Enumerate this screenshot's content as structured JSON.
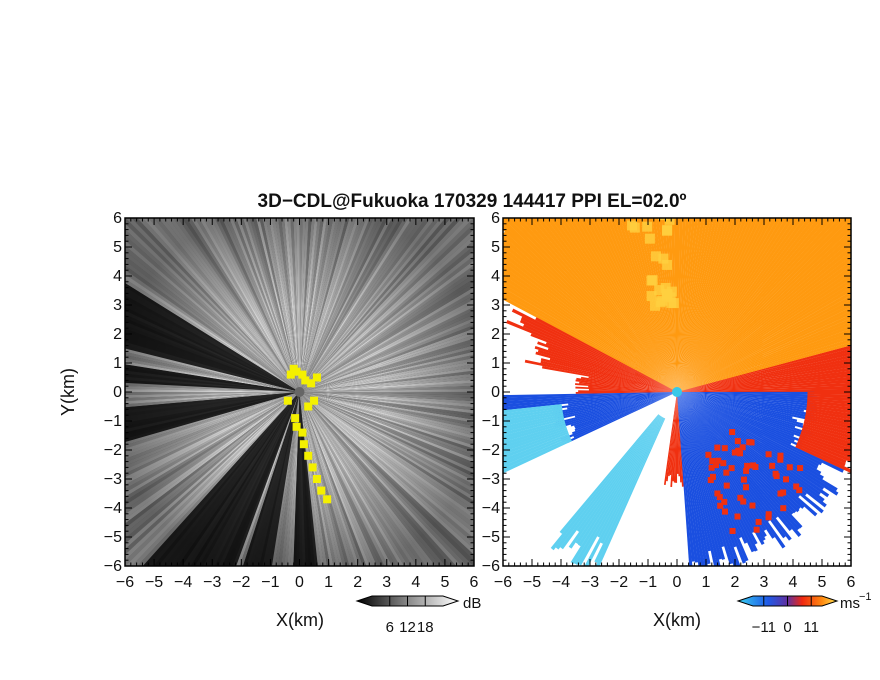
{
  "title": "3D−CDL@Fukuoka 170329 144417 PPI EL=02.0º",
  "chart_data": [
    {
      "type": "heatmap",
      "panel": "left",
      "quantity": "radar backscatter intensity",
      "xlabel": "X(km)",
      "ylabel": "Y(km)",
      "xlim": [
        -6,
        6
      ],
      "ylim": [
        -6,
        6
      ],
      "xticks": [
        "−6",
        "−5",
        "−4",
        "−3",
        "−2",
        "−1",
        "0",
        "1",
        "2",
        "3",
        "4",
        "5",
        "6"
      ],
      "yticks": [
        "−6",
        "−5",
        "−4",
        "−3",
        "−2",
        "−1",
        "0",
        "1",
        "2",
        "3",
        "4",
        "5",
        "6"
      ],
      "colorbar": {
        "unit": "dB",
        "ticks": [
          "6",
          "12",
          "18"
        ],
        "values": [
          6,
          12,
          18
        ],
        "range": [
          0,
          24
        ]
      },
      "colors": {
        "low": "#1e1e1e",
        "high": "#f2f2f2",
        "flag": "#f4f000",
        "radar_site": "#666666"
      }
    },
    {
      "type": "heatmap",
      "panel": "right",
      "quantity": "Doppler radial velocity",
      "xlabel": "X(km)",
      "ylabel": "",
      "xlim": [
        -6,
        6
      ],
      "ylim": [
        -6,
        6
      ],
      "xticks": [
        "−6",
        "−5",
        "−4",
        "−3",
        "−2",
        "−1",
        "0",
        "1",
        "2",
        "3",
        "4",
        "5",
        "6"
      ],
      "yticks": [
        "−6",
        "−5",
        "−4",
        "−3",
        "−2",
        "−1",
        "0",
        "1",
        "2",
        "3",
        "4",
        "5",
        "6"
      ],
      "colorbar": {
        "unit": "ms",
        "unit_exp": "−1",
        "ticks": [
          "−11",
          "0",
          "11"
        ],
        "values": [
          -11,
          0,
          11
        ],
        "range": [
          -16,
          16
        ]
      },
      "colors": {
        "neg_light": "#5fd0f0",
        "neg": "#1a4fe0",
        "pos": "#f03010",
        "pos_far": "#ff9a10",
        "pos_light": "#ffd040",
        "radar_site": "#38c8e8"
      }
    }
  ]
}
